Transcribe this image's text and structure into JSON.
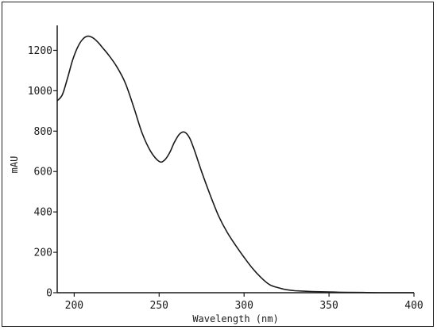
{
  "chart_data": {
    "type": "line",
    "title": "",
    "xlabel": "Wavelength (nm)",
    "ylabel": "mAU",
    "xlim": [
      190,
      400
    ],
    "ylim": [
      0,
      1300
    ],
    "x_ticks": [
      200,
      250,
      300,
      350,
      400
    ],
    "y_ticks": [
      0,
      200,
      400,
      600,
      800,
      1000,
      1200
    ],
    "grid": false,
    "legend": "none",
    "line_color": "#1a1a1a",
    "series": [
      {
        "x": [
          190,
          193,
          196,
          199,
          202,
          205,
          208,
          211,
          214,
          217,
          220,
          225,
          230,
          235,
          240,
          245,
          250,
          253,
          256,
          259,
          262,
          265,
          268,
          271,
          275,
          280,
          285,
          290,
          295,
          300,
          305,
          310,
          315,
          320,
          325,
          330,
          340,
          350,
          360,
          370,
          380,
          390,
          400
        ],
        "y": [
          950,
          980,
          1060,
          1150,
          1215,
          1255,
          1270,
          1262,
          1240,
          1210,
          1180,
          1120,
          1040,
          920,
          790,
          700,
          650,
          655,
          690,
          745,
          785,
          795,
          765,
          700,
          600,
          485,
          380,
          300,
          235,
          175,
          120,
          75,
          40,
          25,
          15,
          10,
          6,
          4,
          2,
          1,
          0,
          0,
          0
        ]
      }
    ]
  }
}
